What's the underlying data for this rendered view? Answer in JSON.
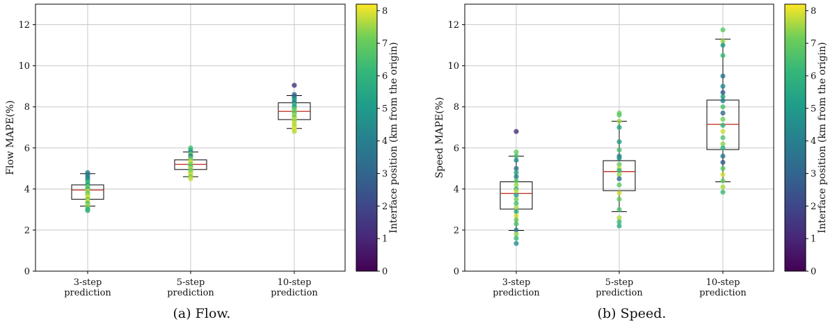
{
  "chart_data": [
    {
      "type": "box-scatter",
      "panel_caption": "(a) Flow.",
      "ylabel": "Flow MAPE(%)",
      "ylim": [
        0,
        13
      ],
      "yticks": [
        0,
        2,
        4,
        6,
        8,
        10,
        12
      ],
      "categories": [
        "3-step\nprediction",
        "5-step\nprediction",
        "10-step\nprediction"
      ],
      "grid": true,
      "box_color": "#000000",
      "median_color": "#c0392b",
      "colorbar": {
        "label": "Interface position (km from the origin)",
        "range": [
          0,
          8.2
        ],
        "ticks": [
          0,
          1,
          2,
          3,
          4,
          5,
          6,
          7,
          8
        ],
        "colormap": "viridis"
      },
      "boxes": [
        {
          "q1": 3.5,
          "median": 3.95,
          "q3": 4.2,
          "whisker_low": 3.17,
          "whisker_high": 4.75
        },
        {
          "q1": 4.95,
          "median": 5.2,
          "q3": 5.42,
          "whisker_low": 4.6,
          "whisker_high": 5.8
        },
        {
          "q1": 7.38,
          "median": 7.78,
          "q3": 8.2,
          "whisker_low": 6.95,
          "whisker_high": 8.55
        }
      ],
      "points": [
        [
          [
            4.8,
            4.0
          ],
          [
            4.7,
            3.2
          ],
          [
            4.6,
            4.5
          ],
          [
            4.5,
            3.8
          ],
          [
            4.4,
            5.5
          ],
          [
            4.3,
            6.5
          ],
          [
            4.2,
            5.0
          ],
          [
            4.1,
            7.2
          ],
          [
            4.0,
            6.0
          ],
          [
            3.9,
            7.8
          ],
          [
            3.8,
            6.8
          ],
          [
            3.7,
            7.5
          ],
          [
            3.6,
            8.0
          ],
          [
            3.5,
            7.0
          ],
          [
            3.4,
            7.9
          ],
          [
            3.3,
            6.4
          ],
          [
            3.2,
            7.6
          ],
          [
            3.1,
            6.9
          ],
          [
            3.0,
            5.6
          ],
          [
            2.95,
            6.2
          ]
        ],
        [
          [
            6.0,
            6.5
          ],
          [
            5.9,
            6.0
          ],
          [
            5.8,
            4.5
          ],
          [
            5.7,
            7.0
          ],
          [
            5.6,
            3.8
          ],
          [
            5.5,
            6.8
          ],
          [
            5.4,
            7.4
          ],
          [
            5.3,
            7.9
          ],
          [
            5.2,
            7.2
          ],
          [
            5.1,
            6.6
          ],
          [
            5.0,
            7.7
          ],
          [
            4.9,
            7.0
          ],
          [
            4.8,
            7.5
          ],
          [
            4.7,
            7.9
          ],
          [
            4.6,
            7.3
          ],
          [
            4.5,
            7.8
          ]
        ],
        [
          [
            9.05,
            1.2
          ],
          [
            8.6,
            3.0
          ],
          [
            8.5,
            2.5
          ],
          [
            8.4,
            4.8
          ],
          [
            8.3,
            5.5
          ],
          [
            8.2,
            3.6
          ],
          [
            8.1,
            6.3
          ],
          [
            8.0,
            5.0
          ],
          [
            7.9,
            6.8
          ],
          [
            7.8,
            7.2
          ],
          [
            7.7,
            6.5
          ],
          [
            7.6,
            7.6
          ],
          [
            7.5,
            7.0
          ],
          [
            7.4,
            7.8
          ],
          [
            7.3,
            7.4
          ],
          [
            7.2,
            7.9
          ],
          [
            7.1,
            7.6
          ],
          [
            7.0,
            7.8
          ],
          [
            6.9,
            8.0
          ],
          [
            6.8,
            7.7
          ]
        ]
      ]
    },
    {
      "type": "box-scatter",
      "panel_caption": "(b) Speed.",
      "ylabel": "Speed MAPE(%)",
      "ylim": [
        0,
        13
      ],
      "yticks": [
        0,
        2,
        4,
        6,
        8,
        10,
        12
      ],
      "categories": [
        "3-step\nprediction",
        "5-step\nprediction",
        "10-step\nprediction"
      ],
      "grid": true,
      "box_color": "#000000",
      "median_color": "#c0392b",
      "colorbar": {
        "label": "Interface position (km from the origin)",
        "range": [
          0,
          8.2
        ],
        "ticks": [
          0,
          1,
          2,
          3,
          4,
          5,
          6,
          7,
          8
        ],
        "colormap": "viridis"
      },
      "boxes": [
        {
          "q1": 3.02,
          "median": 3.78,
          "q3": 4.35,
          "whisker_low": 1.98,
          "whisker_high": 5.6
        },
        {
          "q1": 3.92,
          "median": 4.85,
          "q3": 5.38,
          "whisker_low": 2.9,
          "whisker_high": 7.3
        },
        {
          "q1": 5.92,
          "median": 7.15,
          "q3": 8.33,
          "whisker_low": 4.35,
          "whisker_high": 11.3
        }
      ],
      "points": [
        [
          [
            6.8,
            1.2
          ],
          [
            5.8,
            7.0
          ],
          [
            5.6,
            6.5
          ],
          [
            5.4,
            4.5
          ],
          [
            5.0,
            3.5
          ],
          [
            4.8,
            5.5
          ],
          [
            4.6,
            4.0
          ],
          [
            4.4,
            6.8
          ],
          [
            4.2,
            7.5
          ],
          [
            4.0,
            6.0
          ],
          [
            3.9,
            7.8
          ],
          [
            3.7,
            5.0
          ],
          [
            3.5,
            7.2
          ],
          [
            3.3,
            6.4
          ],
          [
            3.1,
            7.6
          ],
          [
            2.9,
            5.8
          ],
          [
            2.7,
            7.9
          ],
          [
            2.5,
            7.1
          ],
          [
            2.3,
            6.6
          ],
          [
            2.0,
            3.8
          ],
          [
            1.8,
            7.4
          ],
          [
            1.6,
            6.2
          ],
          [
            1.35,
            4.6
          ]
        ],
        [
          [
            7.7,
            7.2
          ],
          [
            7.6,
            6.8
          ],
          [
            7.3,
            7.5
          ],
          [
            7.0,
            5.5
          ],
          [
            6.3,
            5.0
          ],
          [
            5.9,
            6.5
          ],
          [
            5.6,
            3.8
          ],
          [
            5.5,
            4.6
          ],
          [
            5.2,
            7.0
          ],
          [
            5.0,
            7.8
          ],
          [
            4.9,
            6.0
          ],
          [
            4.7,
            7.4
          ],
          [
            4.5,
            3.2
          ],
          [
            4.2,
            6.8
          ],
          [
            3.8,
            7.9
          ],
          [
            3.5,
            7.0
          ],
          [
            3.0,
            6.6
          ],
          [
            2.6,
            7.7
          ],
          [
            2.4,
            6.2
          ],
          [
            2.2,
            5.6
          ]
        ],
        [
          [
            11.75,
            6.8
          ],
          [
            11.2,
            7.5
          ],
          [
            11.0,
            5.0
          ],
          [
            10.5,
            6.2
          ],
          [
            9.5,
            3.5
          ],
          [
            9.0,
            4.5
          ],
          [
            8.7,
            2.8
          ],
          [
            8.5,
            5.5
          ],
          [
            8.3,
            4.0
          ],
          [
            8.0,
            6.5
          ],
          [
            7.7,
            3.0
          ],
          [
            7.4,
            7.2
          ],
          [
            7.1,
            6.0
          ],
          [
            6.8,
            7.8
          ],
          [
            6.5,
            6.6
          ],
          [
            6.2,
            7.4
          ],
          [
            6.0,
            5.8
          ],
          [
            5.6,
            3.6
          ],
          [
            5.3,
            2.5
          ],
          [
            5.0,
            6.8
          ],
          [
            4.7,
            7.9
          ],
          [
            4.4,
            7.0
          ],
          [
            4.1,
            7.6
          ],
          [
            3.85,
            6.2
          ]
        ]
      ]
    }
  ]
}
